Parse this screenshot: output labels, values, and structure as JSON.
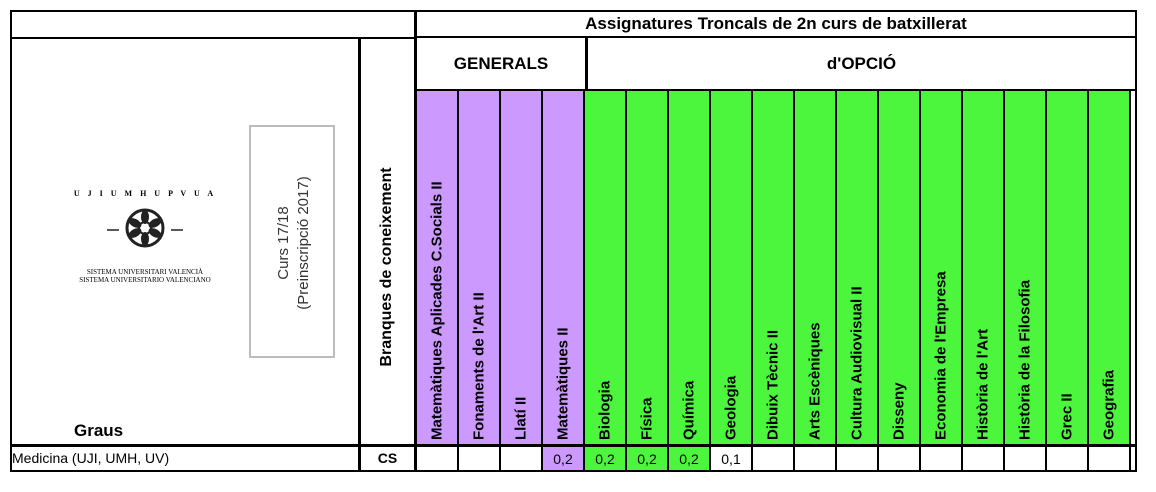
{
  "header": {
    "title": "Assignatures Troncals de 2n curs de batxillerat",
    "groups": {
      "generals": "GENERALS",
      "opcio": "d'OPCIÓ"
    }
  },
  "logo": {
    "arc_text": "U J I   U M H   U P V   U A",
    "line1": "SISTEMA UNIVERSITARI VALENCIÀ",
    "line2": "SISTEMA UNIVERSITARIO VALENCIANO"
  },
  "course": {
    "line1": "Curs 17/18",
    "line2": "(Preinscripció 2017)"
  },
  "graus_label": "Graus",
  "branques_label": "Branques de coneixement",
  "columns": [
    {
      "label": "Matemàtiques Aplicades C.Socials II",
      "color": "#cc99ff"
    },
    {
      "label": "Fonaments de l'Art II",
      "color": "#cc99ff"
    },
    {
      "label": "Llatí II",
      "color": "#cc99ff"
    },
    {
      "label": "Matemàtiques II",
      "color": "#cc99ff"
    },
    {
      "label": "Biologia",
      "color": "#4cf63d"
    },
    {
      "label": "Física",
      "color": "#4cf63d"
    },
    {
      "label": "Química",
      "color": "#4cf63d"
    },
    {
      "label": "Geologia",
      "color": "#4cf63d"
    },
    {
      "label": "Dibuix Tècnic II",
      "color": "#4cf63d"
    },
    {
      "label": "Arts  Escèniques",
      "color": "#4cf63d"
    },
    {
      "label": "Cultura Audiovisual II",
      "color": "#4cf63d"
    },
    {
      "label": "Disseny",
      "color": "#4cf63d"
    },
    {
      "label": "Economia de l'Empresa",
      "color": "#4cf63d"
    },
    {
      "label": "Història de l'Art",
      "color": "#4cf63d"
    },
    {
      "label": "Història de la Filosofia",
      "color": "#4cf63d"
    },
    {
      "label": "Grec II",
      "color": "#4cf63d"
    },
    {
      "label": "Geografia",
      "color": "#4cf63d"
    }
  ],
  "rows": [
    {
      "grau": "Medicina (UJI, UMH, UV)",
      "branca": "CS",
      "values": [
        "",
        "",
        "",
        "0,2",
        "0,2",
        "0,2",
        "0,2",
        "0,1",
        "",
        "",
        "",
        "",
        "",
        "",
        "",
        "",
        ""
      ]
    }
  ]
}
